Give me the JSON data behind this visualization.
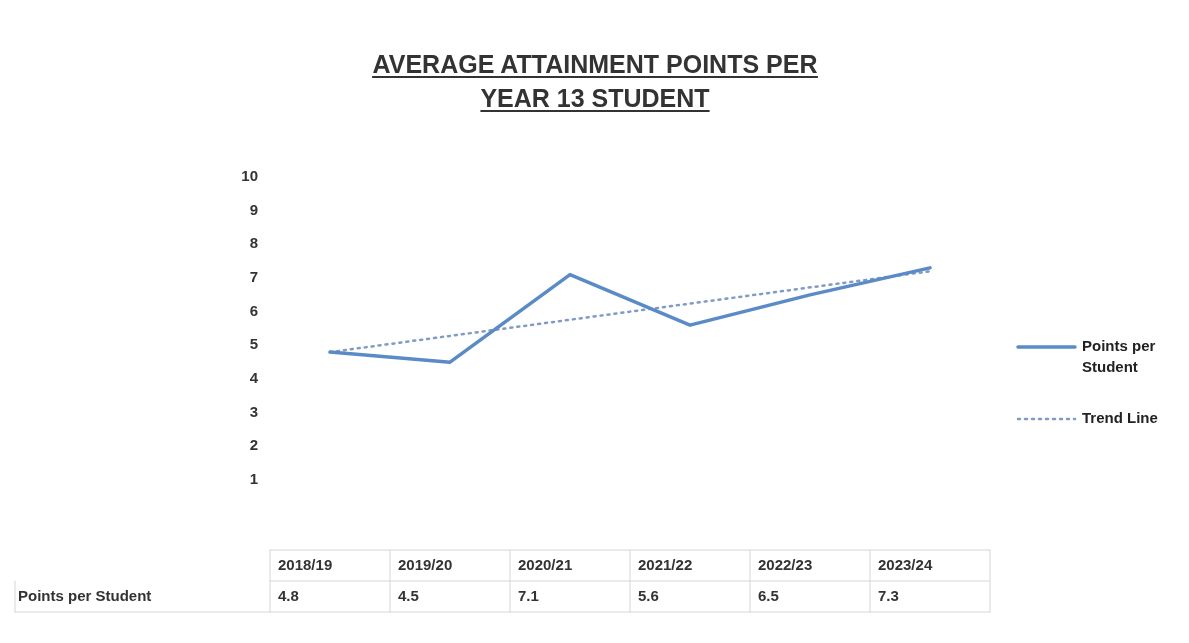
{
  "chart_data": {
    "type": "line",
    "title": "AVERAGE ATTAINMENT POINTS PER YEAR 13 STUDENT",
    "categories": [
      "2018/19",
      "2019/20",
      "2020/21",
      "2021/22",
      "2022/23",
      "2023/24"
    ],
    "series": [
      {
        "name": "Points per Student",
        "color": "#5b8bc7",
        "values": [
          4.8,
          4.5,
          7.1,
          5.6,
          6.5,
          7.3
        ],
        "value_labels": [
          "4.8",
          "4.5",
          "7.1",
          "5.6",
          "6.5",
          "7.3"
        ],
        "line_style": "solid"
      },
      {
        "name": "Trend Line",
        "type": "line",
        "color": "#7f9bc6",
        "x": [
          "2018/19",
          "2023/24"
        ],
        "values": [
          4.8,
          7.2
        ],
        "line_style": "dotted"
      }
    ],
    "ylim": [
      1,
      10
    ],
    "yticks": [
      1,
      2,
      3,
      4,
      5,
      6,
      7,
      8,
      9,
      10
    ],
    "grid": false,
    "legend": "right",
    "marker": "none"
  }
}
